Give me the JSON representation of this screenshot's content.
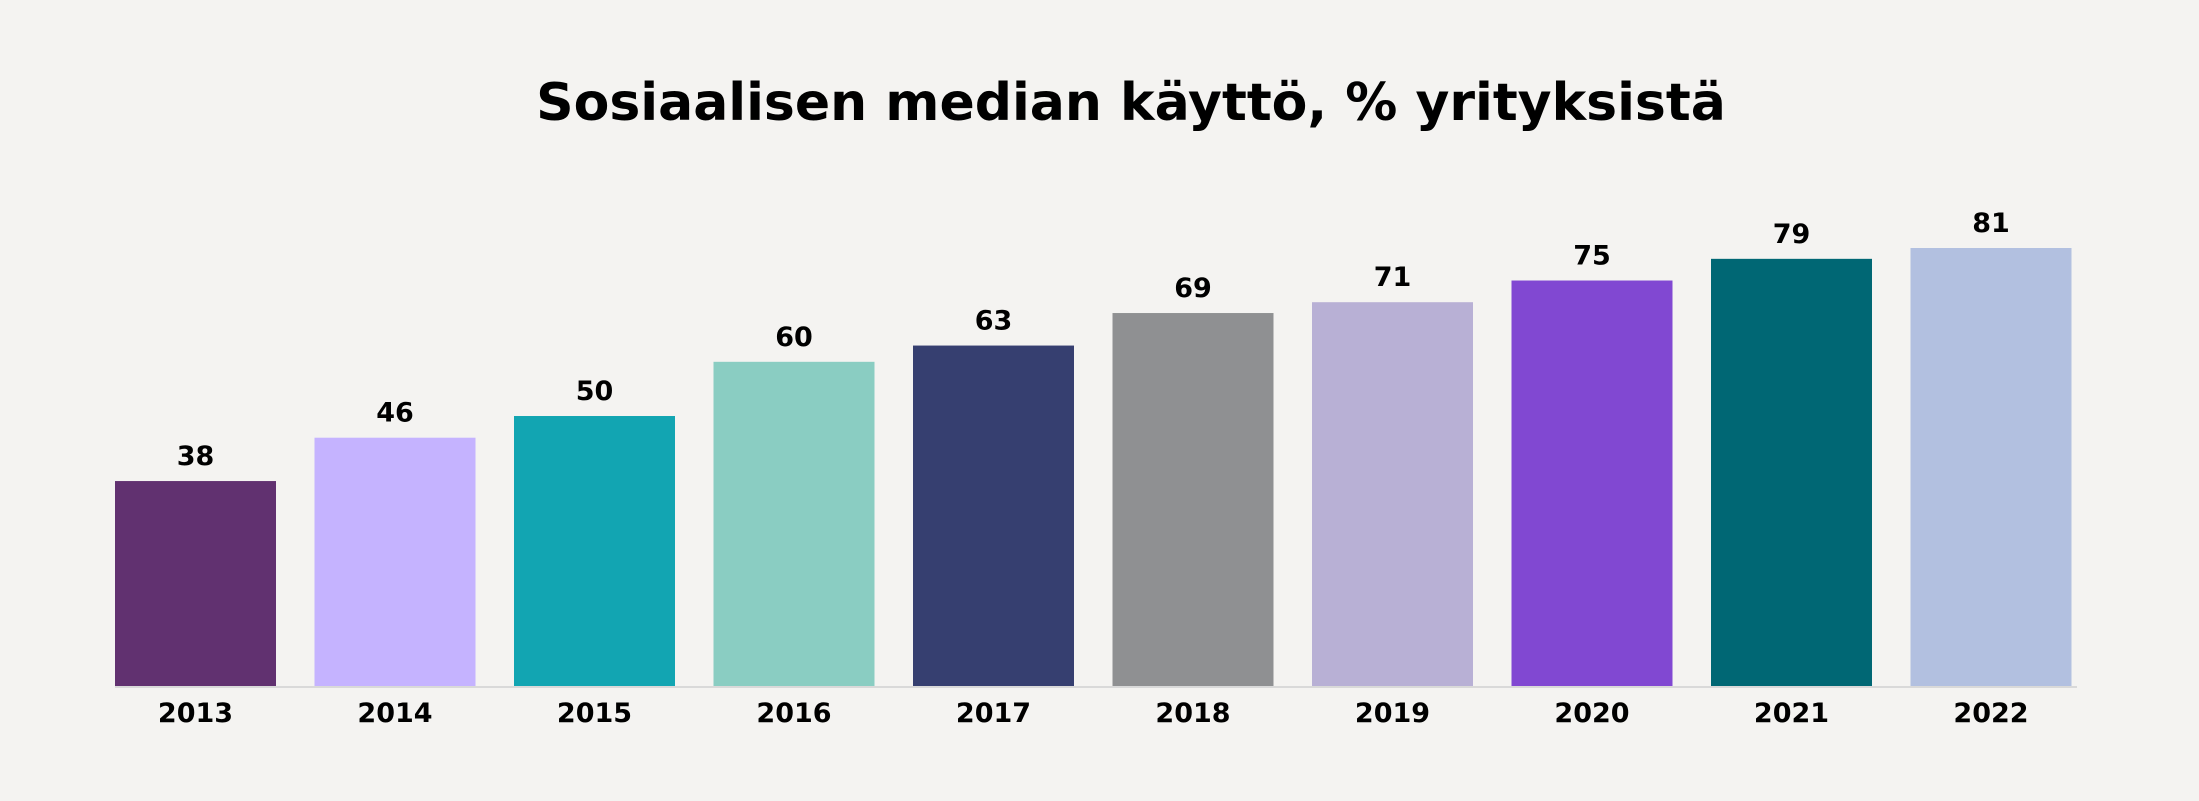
{
  "chart_data": {
    "type": "bar",
    "title": "Sosiaalisen median käyttö, % yrityksistä",
    "xlabel": "",
    "ylabel": "",
    "ylim": [
      0,
      81
    ],
    "grid": false,
    "legend": "none",
    "categories": [
      "2013",
      "2014",
      "2015",
      "2016",
      "2017",
      "2018",
      "2019",
      "2020",
      "2021",
      "2022"
    ],
    "values": [
      38,
      46,
      50,
      60,
      63,
      69,
      71,
      75,
      79,
      81
    ],
    "colors": [
      "#613170",
      "#c5b3ff",
      "#12a5b2",
      "#8acdc2",
      "#363f70",
      "#8f9092",
      "#b8b0d5",
      "#8148d2",
      "#006774",
      "#b2c0e0"
    ]
  },
  "style": {
    "background": "#f4f3f1",
    "text_color": "#000000",
    "axis_color": "#d9d9d9"
  }
}
